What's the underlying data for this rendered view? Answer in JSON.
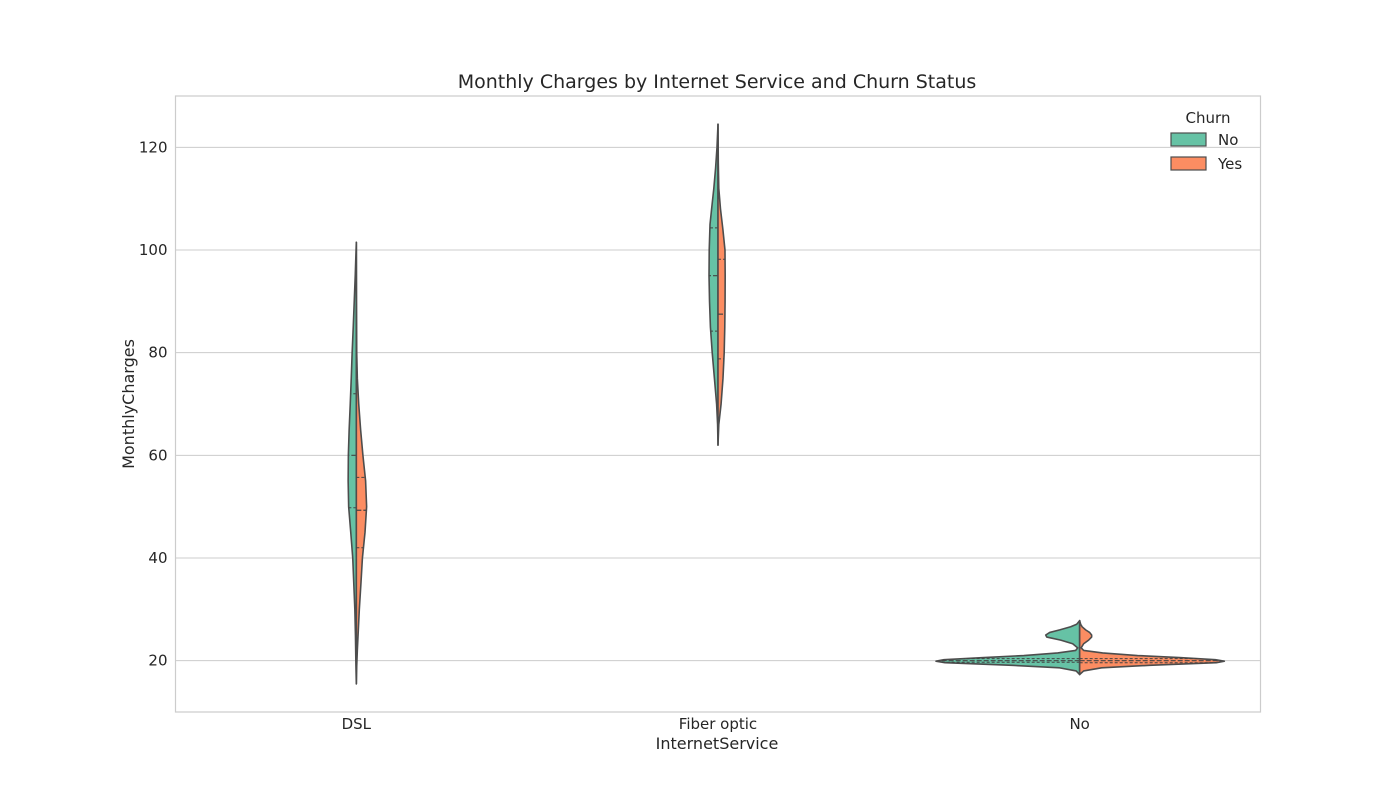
{
  "colors": {
    "No": "#66c2a5",
    "Yes": "#fc8d62",
    "outline": "#4d4d4d"
  },
  "chart_data": {
    "type": "violin",
    "title": "Monthly Charges by Internet Service and Churn Status",
    "xlabel": "InternetService",
    "ylabel": "MonthlyCharges",
    "categories": [
      "DSL",
      "Fiber optic",
      "No"
    ],
    "ylim": [
      10,
      130
    ],
    "yticks": [
      20,
      40,
      60,
      80,
      100,
      120
    ],
    "grid": true,
    "split": true,
    "inner": "quartile",
    "legend": {
      "title": "Churn",
      "position": "top-right",
      "entries": [
        "No",
        "Yes"
      ]
    },
    "series": [
      {
        "name": "No",
        "side": "left",
        "groups": [
          {
            "category": "DSL",
            "range": [
              15.5,
              101.5
            ],
            "quartiles": [
              49.8,
              60.0,
              72.0
            ],
            "density": [
              [
                15.5,
                0
              ],
              [
                19,
                0.4
              ],
              [
                25,
                0.9
              ],
              [
                30,
                1.5
              ],
              [
                40,
                3.6
              ],
              [
                45,
                5.6
              ],
              [
                50,
                7.7
              ],
              [
                55,
                8.2
              ],
              [
                60,
                8.0
              ],
              [
                65,
                7.2
              ],
              [
                70,
                6.1
              ],
              [
                75,
                5.1
              ],
              [
                80,
                4.2
              ],
              [
                85,
                3.1
              ],
              [
                90,
                2.1
              ],
              [
                95,
                1.1
              ],
              [
                98,
                0.6
              ],
              [
                101.5,
                0
              ]
            ]
          },
          {
            "category": "Fiber optic",
            "range": [
              62,
              124.5
            ],
            "quartiles": [
              84.2,
              95.0,
              104.3
            ],
            "density": [
              [
                62,
                0
              ],
              [
                66,
                0.4
              ],
              [
                70,
                1.4
              ],
              [
                75,
                3.6
              ],
              [
                80,
                5.8
              ],
              [
                85,
                7.6
              ],
              [
                90,
                8.5
              ],
              [
                95,
                9.0
              ],
              [
                100,
                8.8
              ],
              [
                105,
                8.0
              ],
              [
                108,
                6.4
              ],
              [
                112,
                4.2
              ],
              [
                116,
                2.4
              ],
              [
                120,
                1.0
              ],
              [
                124.5,
                0
              ]
            ]
          },
          {
            "category": "No",
            "range": [
              17.3,
              27.8
            ],
            "quartiles": [
              19.7,
              20.0,
              20.4
            ],
            "density": [
              [
                17.3,
                0
              ],
              [
                18,
                3.5
              ],
              [
                18.6,
                20
              ],
              [
                19.1,
                68
              ],
              [
                19.6,
                135
              ],
              [
                19.9,
                144
              ],
              [
                20.2,
                136
              ],
              [
                20.6,
                96
              ],
              [
                21,
                56
              ],
              [
                21.5,
                22
              ],
              [
                22,
                4
              ],
              [
                22.5,
                2
              ],
              [
                23.3,
                7
              ],
              [
                24,
                19
              ],
              [
                24.6,
                33
              ],
              [
                25,
                34
              ],
              [
                25.5,
                30
              ],
              [
                26,
                20
              ],
              [
                26.6,
                9
              ],
              [
                27.1,
                3
              ],
              [
                27.8,
                0
              ]
            ]
          }
        ]
      },
      {
        "name": "Yes",
        "side": "right",
        "groups": [
          {
            "category": "DSL",
            "range": [
              15.5,
              101.5
            ],
            "quartiles": [
              42.0,
              49.3,
              55.7
            ],
            "density": [
              [
                15.5,
                0
              ],
              [
                19,
                0.4
              ],
              [
                22,
                1.0
              ],
              [
                26,
                2.0
              ],
              [
                30,
                3.0
              ],
              [
                35,
                4.6
              ],
              [
                40,
                6.1
              ],
              [
                45,
                8.7
              ],
              [
                50,
                10.3
              ],
              [
                55,
                9.3
              ],
              [
                60,
                6.6
              ],
              [
                65,
                4.3
              ],
              [
                70,
                2.4
              ],
              [
                75,
                1.0
              ],
              [
                80,
                0.4
              ],
              [
                90,
                0.15
              ],
              [
                101.5,
                0
              ]
            ]
          },
          {
            "category": "Fiber optic",
            "range": [
              62,
              124.5
            ],
            "quartiles": [
              78.8,
              87.5,
              98.2
            ],
            "density": [
              [
                62,
                0
              ],
              [
                66,
                0.8
              ],
              [
                70,
                3.1
              ],
              [
                75,
                5.0
              ],
              [
                80,
                6.2
              ],
              [
                85,
                6.8
              ],
              [
                90,
                7.1
              ],
              [
                95,
                7.2
              ],
              [
                100,
                7.0
              ],
              [
                104,
                4.9
              ],
              [
                108,
                2.5
              ],
              [
                112,
                0.8
              ],
              [
                117,
                0.3
              ],
              [
                124.5,
                0
              ]
            ]
          },
          {
            "category": "No",
            "range": [
              17.3,
              27.8
            ],
            "quartiles": [
              19.6,
              20.0,
              20.4
            ],
            "density": [
              [
                17.3,
                0
              ],
              [
                18,
                4
              ],
              [
                18.6,
                22
              ],
              [
                19.1,
                70
              ],
              [
                19.6,
                137
              ],
              [
                19.9,
                145
              ],
              [
                20.2,
                136
              ],
              [
                20.6,
                100
              ],
              [
                21,
                58
              ],
              [
                21.5,
                23
              ],
              [
                22,
                4
              ],
              [
                22.5,
                1.5
              ],
              [
                23.3,
                4
              ],
              [
                24,
                9
              ],
              [
                24.6,
                12
              ],
              [
                25,
                12
              ],
              [
                25.5,
                10
              ],
              [
                26,
                6
              ],
              [
                26.6,
                2.5
              ],
              [
                27.1,
                1
              ],
              [
                27.8,
                0
              ]
            ]
          }
        ]
      }
    ]
  }
}
